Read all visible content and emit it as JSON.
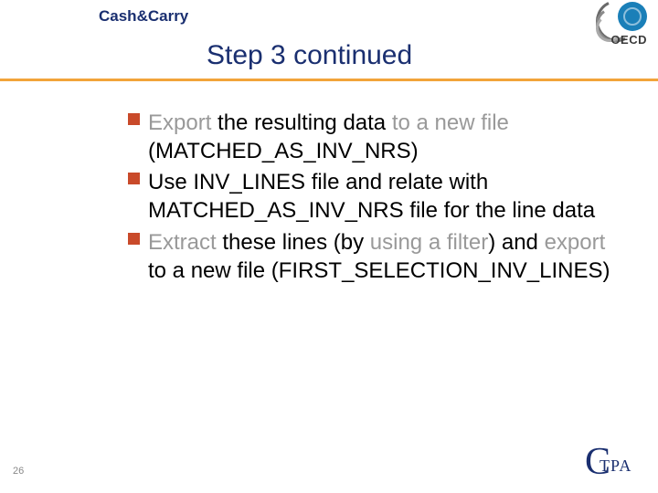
{
  "colors": {
    "heading": "#1a2f70",
    "divider": "#f2a43a",
    "bullet": "#c94a2a",
    "muted": "#999999",
    "text": "#000000",
    "background": "#ffffff",
    "pagenum": "#888888"
  },
  "typography": {
    "kicker_fontsize": 17,
    "title_fontsize": 30,
    "body_fontsize": 24,
    "pagenum_fontsize": 11,
    "line_height": 1.28
  },
  "kicker": "Cash&Carry",
  "title": "Step 3 continued",
  "bullets": [
    {
      "runs": [
        {
          "text": "Export ",
          "muted": true
        },
        {
          "text": "the resulting data ",
          "muted": false
        },
        {
          "text": "to a new file ",
          "muted": true
        },
        {
          "text": "(MATCHED_AS_INV_NRS)",
          "muted": false
        }
      ]
    },
    {
      "runs": [
        {
          "text": "Use INV_LINES file and relate with ",
          "muted": false
        },
        {
          "text": "MATCHED_AS_INV_NRS ",
          "muted": false
        },
        {
          "text": "file for the line data",
          "muted": false
        }
      ]
    },
    {
      "runs": [
        {
          "text": "Extract ",
          "muted": true
        },
        {
          "text": "these lines (by ",
          "muted": false
        },
        {
          "text": "using a filter",
          "muted": true
        },
        {
          "text": ") and ",
          "muted": false
        },
        {
          "text": "export ",
          "muted": true
        },
        {
          "text": "to a new file (FIRST_SELECTION_INV_LINES)",
          "muted": false
        }
      ]
    }
  ],
  "page_number": "26",
  "logos": {
    "top_right": {
      "text": "OECD",
      "globe_color": "#1a7fb8",
      "arc_color": "#6a6a6a"
    },
    "bottom_right": {
      "big_letter": "C",
      "text": "TPA",
      "color": "#1a2f70"
    }
  }
}
